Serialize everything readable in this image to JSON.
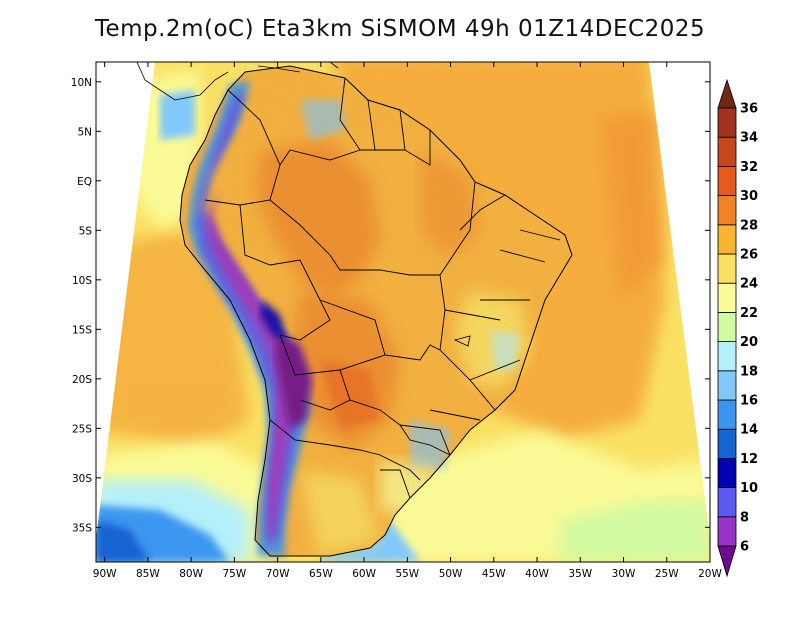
{
  "title": "Temp.2m(oC) Eta3km SiSMOM 49h 01Z14DEC2025",
  "map": {
    "variable": "2m air temperature (°C)",
    "region": "South America",
    "lon_min": -91,
    "lon_max": -20,
    "lat_min": -38.5,
    "lat_max": 12,
    "lat_ticks": [
      {
        "value": 10,
        "label": "10N"
      },
      {
        "value": 5,
        "label": "5N"
      },
      {
        "value": 0,
        "label": "EQ"
      },
      {
        "value": -5,
        "label": "5S"
      },
      {
        "value": -10,
        "label": "10S"
      },
      {
        "value": -15,
        "label": "15S"
      },
      {
        "value": -20,
        "label": "20S"
      },
      {
        "value": -25,
        "label": "25S"
      },
      {
        "value": -30,
        "label": "30S"
      },
      {
        "value": -35,
        "label": "35S"
      }
    ],
    "lon_ticks": [
      {
        "value": -90,
        "label": "90W"
      },
      {
        "value": -85,
        "label": "85W"
      },
      {
        "value": -80,
        "label": "80W"
      },
      {
        "value": -75,
        "label": "75W"
      },
      {
        "value": -70,
        "label": "70W"
      },
      {
        "value": -65,
        "label": "65W"
      },
      {
        "value": -60,
        "label": "60W"
      },
      {
        "value": -55,
        "label": "55W"
      },
      {
        "value": -50,
        "label": "50W"
      },
      {
        "value": -45,
        "label": "45W"
      },
      {
        "value": -40,
        "label": "40W"
      },
      {
        "value": -35,
        "label": "35W"
      },
      {
        "value": -30,
        "label": "30W"
      },
      {
        "value": -25,
        "label": "25W"
      },
      {
        "value": -20,
        "label": "20W"
      }
    ]
  },
  "colorbar": {
    "levels": [
      "6",
      "8",
      "10",
      "12",
      "14",
      "16",
      "18",
      "20",
      "22",
      "24",
      "26",
      "28",
      "30",
      "32",
      "34",
      "36"
    ],
    "colors": [
      "#6a0d91",
      "#9a32c8",
      "#5a5af0",
      "#0000b4",
      "#1464d2",
      "#3c96f0",
      "#82c8fa",
      "#b4f0fa",
      "#d2faa0",
      "#fafa96",
      "#fae164",
      "#fab432",
      "#f08228",
      "#e65a1e",
      "#c8461e",
      "#a0321e",
      "#6e2814"
    ]
  },
  "palette": {
    "ocean_warm": "#f5ad3c",
    "ocean_mid": "#fae164",
    "ocean_cool": "#fafa96",
    "ocean_south": "#d2faa0",
    "land_base": "#f7b640",
    "land_hot": "#ee8a2e",
    "border": "#000000"
  }
}
